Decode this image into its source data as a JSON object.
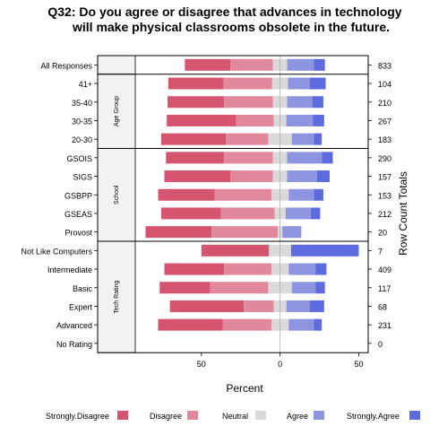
{
  "chart_data": {
    "type": "bar",
    "subtype": "diverging-stacked",
    "title_lines": [
      "Q32: Do you agree or disagree that advances in technology",
      "will make physical classrooms obsolete in the future."
    ],
    "xlabel": "Percent",
    "right_axis_label": "Row Count Totals",
    "xlim": [
      -92,
      56
    ],
    "x_ticks": [
      -50,
      0,
      50
    ],
    "x_tick_labels": [
      "50",
      "0",
      "50"
    ],
    "legend_position": "bottom",
    "categories_legend": [
      {
        "name": "Strongly.Disagree",
        "color": "#D5546F"
      },
      {
        "name": "Disagree",
        "color": "#E2889C"
      },
      {
        "name": "Neutral",
        "color": "#D9D9D9"
      },
      {
        "name": "Agree",
        "color": "#8E95E0"
      },
      {
        "name": "Strongly.Agree",
        "color": "#5D6BDE"
      }
    ],
    "panels": [
      {
        "strip_label": "",
        "rows": [
          {
            "label": "All Responses",
            "total": "833",
            "values": [
              29,
              27,
              9,
              17,
              7
            ]
          }
        ]
      },
      {
        "strip_label": "Age Group",
        "rows": [
          {
            "label": "41+",
            "total": "104",
            "values": [
              35,
              31,
              10,
              14,
              10
            ]
          },
          {
            "label": "35-40",
            "total": "210",
            "values": [
              36,
              31,
              9,
              16,
              7
            ]
          },
          {
            "label": "30-35",
            "total": "267",
            "values": [
              44,
              24,
              8,
              17,
              7
            ]
          },
          {
            "label": "20-30",
            "total": "183",
            "values": [
              41,
              27,
              15,
              14,
              5
            ]
          }
        ]
      },
      {
        "strip_label": "School",
        "rows": [
          {
            "label": "GSOIS",
            "total": "290",
            "values": [
              37,
              31,
              9,
              22,
              7
            ]
          },
          {
            "label": "SIGS",
            "total": "157",
            "values": [
              42,
              27,
              9,
              19,
              8
            ]
          },
          {
            "label": "GSBPP",
            "total": "153",
            "values": [
              36,
              36,
              11,
              16,
              6
            ]
          },
          {
            "label": "GSEAS",
            "total": "212",
            "values": [
              38,
              34,
              7,
              16,
              6
            ]
          },
          {
            "label": "Provost",
            "total": "20",
            "values": [
              42,
              42,
              3,
              12,
              0
            ]
          }
        ]
      },
      {
        "strip_label": "Tech Rating",
        "rows": [
          {
            "label": "Not Like Computers",
            "total": "7",
            "values": [
              43,
              0,
              14,
              0,
              43
            ]
          },
          {
            "label": "Intermediate",
            "total": "409",
            "values": [
              38,
              30,
              11,
              17,
              7
            ]
          },
          {
            "label": "Basic",
            "total": "117",
            "values": [
              32,
              37,
              15,
              15,
              6
            ]
          },
          {
            "label": "Expert",
            "total": "68",
            "values": [
              47,
              19,
              8,
              15,
              9
            ]
          },
          {
            "label": "Advanced",
            "total": "231",
            "values": [
              41,
              31,
              11,
              16,
              5
            ]
          },
          {
            "label": "No Rating",
            "total": "0",
            "values": [
              0,
              0,
              0,
              0,
              0
            ]
          }
        ]
      }
    ]
  }
}
